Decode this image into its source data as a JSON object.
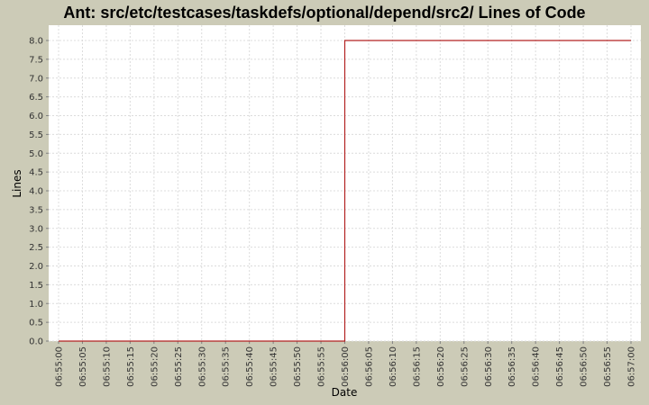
{
  "chart_data": {
    "type": "line",
    "step": true,
    "title": "Ant: src/etc/testcases/taskdefs/optional/depend/src2/ Lines of Code",
    "xlabel": "Date",
    "ylabel": "Lines",
    "xlim": [
      "06:55:00",
      "06:57:00"
    ],
    "ylim": [
      0.0,
      8.0
    ],
    "grid": true,
    "x_ticks": [
      "06:55:00",
      "06:55:05",
      "06:55:10",
      "06:55:15",
      "06:55:20",
      "06:55:25",
      "06:55:30",
      "06:55:35",
      "06:55:40",
      "06:55:45",
      "06:55:50",
      "06:55:55",
      "06:56:00",
      "06:56:05",
      "06:56:10",
      "06:56:15",
      "06:56:20",
      "06:56:25",
      "06:56:30",
      "06:56:35",
      "06:56:40",
      "06:56:45",
      "06:56:50",
      "06:56:55",
      "06:57:00"
    ],
    "y_ticks": [
      "0.0",
      "0.5",
      "1.0",
      "1.5",
      "2.0",
      "2.5",
      "3.0",
      "3.5",
      "4.0",
      "4.5",
      "5.0",
      "5.5",
      "6.0",
      "6.5",
      "7.0",
      "7.5",
      "8.0"
    ],
    "series": [
      {
        "color": "#b22222",
        "points": [
          {
            "x": "06:55:00",
            "y": 0
          },
          {
            "x": "06:56:00",
            "y": 0
          },
          {
            "x": "06:56:00",
            "y": 8
          },
          {
            "x": "06:57:00",
            "y": 8
          }
        ]
      }
    ]
  }
}
